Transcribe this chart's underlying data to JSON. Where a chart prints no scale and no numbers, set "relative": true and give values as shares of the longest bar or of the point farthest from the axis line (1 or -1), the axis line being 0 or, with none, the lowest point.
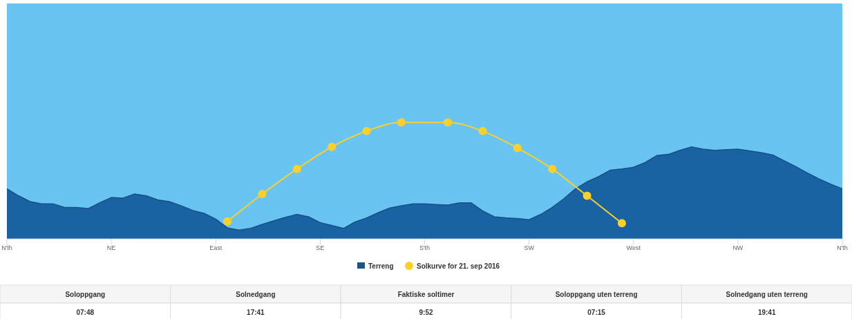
{
  "chart_data": {
    "type": "area",
    "relative": true,
    "categories": [
      "N'th",
      null,
      null,
      null,
      null,
      null,
      null,
      null,
      null,
      "NE",
      null,
      null,
      null,
      null,
      null,
      null,
      null,
      null,
      "East",
      null,
      null,
      null,
      null,
      null,
      null,
      null,
      null,
      "SE",
      null,
      null,
      null,
      null,
      null,
      null,
      null,
      null,
      "S'th",
      null,
      null,
      null,
      null,
      null,
      null,
      null,
      null,
      "SW",
      null,
      null,
      null,
      null,
      null,
      null,
      null,
      null,
      "West",
      null,
      null,
      null,
      null,
      null,
      null,
      null,
      null,
      "NW",
      null,
      null,
      null,
      null,
      null,
      null,
      null,
      null,
      "N'th"
    ],
    "legend": "bottom",
    "series": [
      {
        "name": "Terreng",
        "color": "#1a63a3",
        "values": [
          0.43,
          0.37,
          0.32,
          0.3,
          0.3,
          0.27,
          0.27,
          0.26,
          0.31,
          0.355,
          0.35,
          0.385,
          0.37,
          0.335,
          0.32,
          0.285,
          0.245,
          0.22,
          0.17,
          0.095,
          0.075,
          0.09,
          0.125,
          0.155,
          0.185,
          0.21,
          0.19,
          0.14,
          0.115,
          0.09,
          0.145,
          0.18,
          0.225,
          0.265,
          0.285,
          0.3,
          0.3,
          0.295,
          0.29,
          0.31,
          0.31,
          0.24,
          0.19,
          0.18,
          0.175,
          0.165,
          0.21,
          0.27,
          0.345,
          0.43,
          0.49,
          0.535,
          0.59,
          0.6,
          0.615,
          0.655,
          0.715,
          0.725,
          0.76,
          0.79,
          0.77,
          0.76,
          0.765,
          0.77,
          0.755,
          0.74,
          0.72,
          0.67,
          0.62,
          0.565,
          0.515,
          0.47,
          0.43
        ]
      },
      {
        "name": "Solkurve for 21. sep 2016",
        "type": "line",
        "color": "#fcd02b",
        "marker": "circle",
        "values": [
          null,
          null,
          null,
          null,
          null,
          null,
          null,
          null,
          null,
          null,
          null,
          null,
          null,
          null,
          null,
          null,
          null,
          null,
          null,
          0.15,
          null,
          null,
          0.385,
          null,
          null,
          0.6,
          null,
          null,
          0.79,
          null,
          null,
          0.925,
          null,
          null,
          1,
          null,
          null,
          null,
          1,
          null,
          null,
          0.925,
          null,
          null,
          0.78,
          null,
          null,
          0.6,
          null,
          null,
          0.37,
          null,
          null,
          0.135,
          null,
          null,
          null,
          null,
          null,
          null,
          null,
          null,
          null,
          null,
          null,
          null,
          null,
          null,
          null,
          null,
          null,
          null,
          null
        ]
      }
    ],
    "annotations": [
      "Soloppgang",
      "Solnedgang",
      "Faktiske soltimer",
      "Soloppgang uten terreng",
      "Solnedgang uten terreng",
      "07:48",
      "17:41",
      "9:52",
      "07:15",
      "19:41"
    ]
  }
}
